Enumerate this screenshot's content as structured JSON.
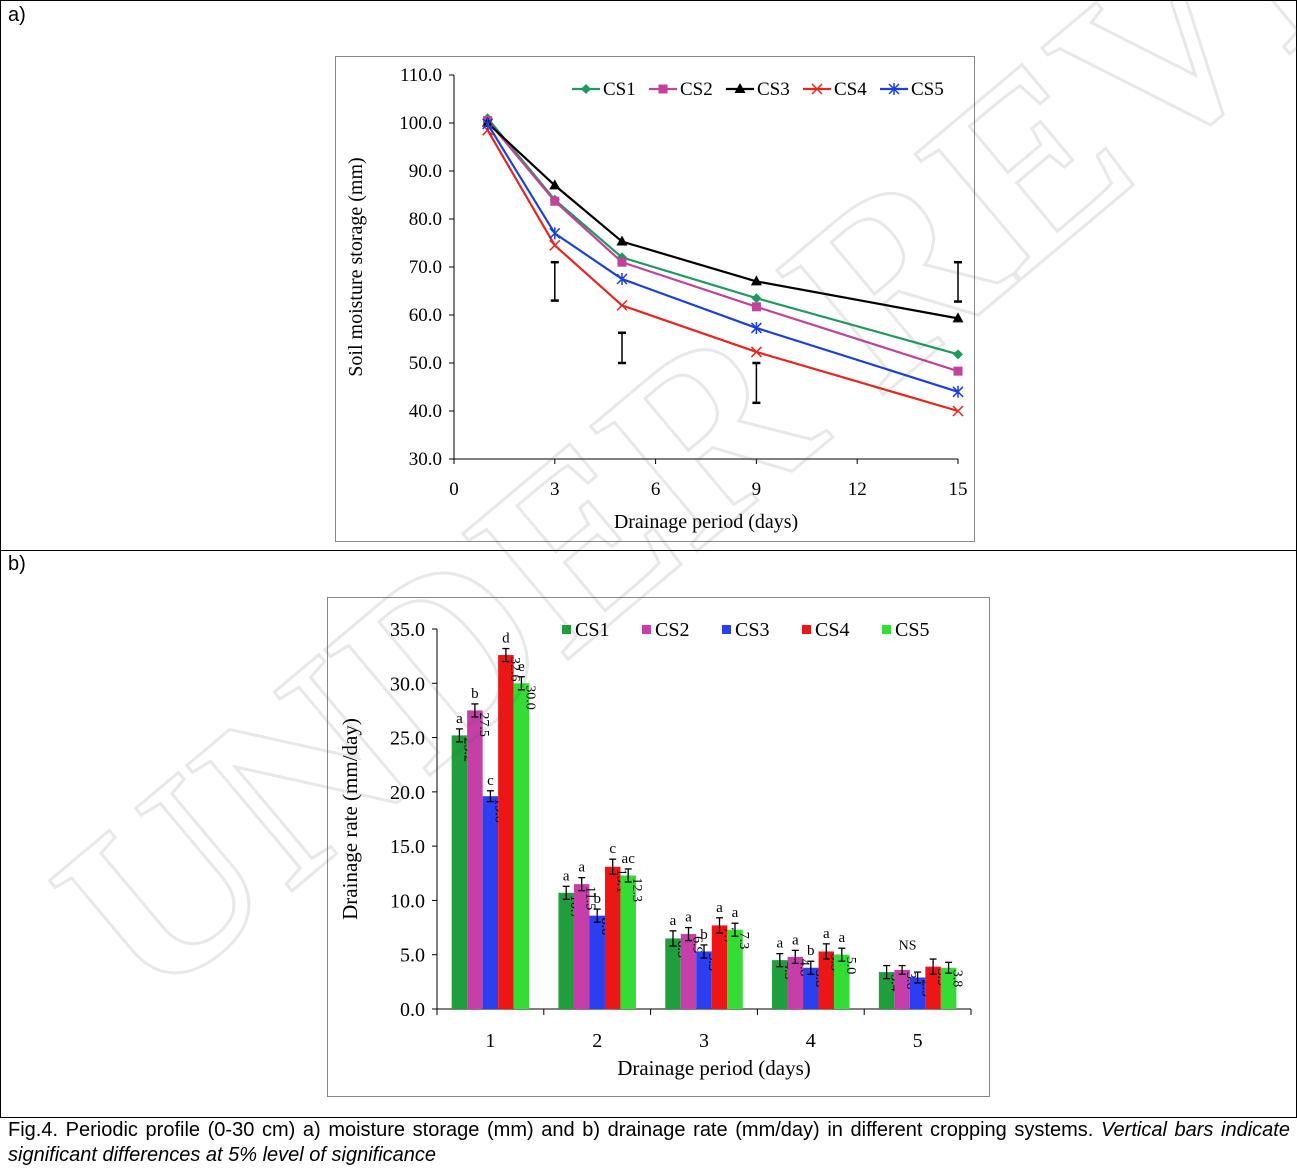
{
  "panel_a_label": "a)",
  "panel_b_label": "b)",
  "caption": {
    "main": "Fig.4. Periodic profile (0-30 cm) a) moisture storage (mm) and b) drainage rate (mm/day) in different cropping systems. ",
    "italic": "Vertical bars indicate significant differences at 5% level of significance"
  },
  "watermark": "UNDER REVIEW",
  "chart_data": [
    {
      "type": "line",
      "xlabel": "Drainage period (days)",
      "ylabel": "Soil moisture storage (mm)",
      "xlim": [
        0,
        15
      ],
      "ylim": [
        30,
        110
      ],
      "xticks": [
        "0",
        "3",
        "6",
        "9",
        "12",
        "15"
      ],
      "yticks": [
        "30.0",
        "40.0",
        "50.0",
        "60.0",
        "70.0",
        "80.0",
        "90.0",
        "100.0",
        "110.0"
      ],
      "x": [
        1,
        3,
        5,
        9,
        15
      ],
      "legend_position": "top",
      "series": [
        {
          "name": "CS1",
          "color": "#1e9a5e",
          "marker": "diamond",
          "values": [
            101.0,
            84.0,
            72.0,
            63.5,
            51.8
          ]
        },
        {
          "name": "CS2",
          "color": "#c0429a",
          "marker": "square",
          "values": [
            100.5,
            83.7,
            71.0,
            61.7,
            48.3
          ]
        },
        {
          "name": "CS3",
          "color": "#000000",
          "marker": "triangle",
          "values": [
            100.0,
            87.0,
            75.3,
            67.0,
            59.3
          ]
        },
        {
          "name": "CS4",
          "color": "#e8251c",
          "marker": "x",
          "values": [
            98.5,
            74.5,
            62.0,
            52.3,
            40.0
          ]
        },
        {
          "name": "CS5",
          "color": "#1a3fe0",
          "marker": "star",
          "values": [
            99.8,
            77.0,
            67.5,
            57.3,
            44.0
          ]
        }
      ],
      "error_bars": [
        {
          "x": 3,
          "low": 63.0,
          "high": 71.0
        },
        {
          "x": 5,
          "low": 50.0,
          "high": 56.3
        },
        {
          "x": 9,
          "low": 41.7,
          "high": 50.0
        },
        {
          "x": 15,
          "low": 62.8,
          "high": 71.0
        }
      ]
    },
    {
      "type": "bar",
      "xlabel": "Drainage period (days)",
      "ylabel": "Drainage rate (mm/day)",
      "ylim": [
        0,
        35
      ],
      "yticks": [
        "0.0",
        "5.0",
        "10.0",
        "15.0",
        "20.0",
        "25.0",
        "30.0",
        "35.0"
      ],
      "categories": [
        "1",
        "2",
        "3",
        "4",
        "5"
      ],
      "legend_position": "top",
      "series": [
        {
          "name": "CS1",
          "color": "#1e9e3c",
          "values": [
            25.2,
            10.7,
            6.5,
            4.5,
            3.4
          ],
          "labels": [
            "25.2",
            "10.7",
            "6.5",
            "4.5",
            "3.4"
          ],
          "errors": [
            0.6,
            0.6,
            0.7,
            0.6,
            0.6
          ],
          "letters": [
            "a",
            "a",
            "a",
            "a",
            ""
          ]
        },
        {
          "name": "CS2",
          "color": "#c63ea8",
          "values": [
            27.5,
            11.5,
            6.9,
            4.8,
            3.6
          ],
          "labels": [
            "27.5",
            "11.5",
            "6.9",
            "4.8",
            "3.6"
          ],
          "errors": [
            0.6,
            0.6,
            0.6,
            0.6,
            0.4
          ],
          "letters": [
            "b",
            "a",
            "a",
            "a",
            ""
          ]
        },
        {
          "name": "CS3",
          "color": "#2b3ff0",
          "values": [
            19.6,
            8.6,
            5.3,
            3.8,
            2.9
          ],
          "labels": [
            "19.6",
            "8.6",
            "5.3",
            "3.8",
            "2.9"
          ],
          "errors": [
            0.5,
            0.6,
            0.6,
            0.6,
            0.5
          ],
          "letters": [
            "c",
            "b",
            "b",
            "b",
            ""
          ]
        },
        {
          "name": "CS4",
          "color": "#ec1616",
          "values": [
            32.6,
            13.1,
            7.7,
            5.3,
            3.9
          ],
          "labels": [
            "32.6",
            "13.1",
            "7.7",
            "5.3",
            "3.9"
          ],
          "errors": [
            0.6,
            0.7,
            0.7,
            0.7,
            0.7
          ],
          "letters": [
            "d",
            "c",
            "a",
            "a",
            ""
          ]
        },
        {
          "name": "CS5",
          "color": "#33dd33",
          "values": [
            30.0,
            12.3,
            7.3,
            5.0,
            3.8
          ],
          "labels": [
            "30.0",
            "12.3",
            "7.3",
            "5.0",
            "3.8"
          ],
          "errors": [
            0.6,
            0.6,
            0.6,
            0.6,
            0.5
          ],
          "letters": [
            "e",
            "ac",
            "a",
            "a",
            ""
          ]
        }
      ],
      "group_annotations": [
        "",
        "",
        "",
        "",
        "NS"
      ]
    }
  ]
}
